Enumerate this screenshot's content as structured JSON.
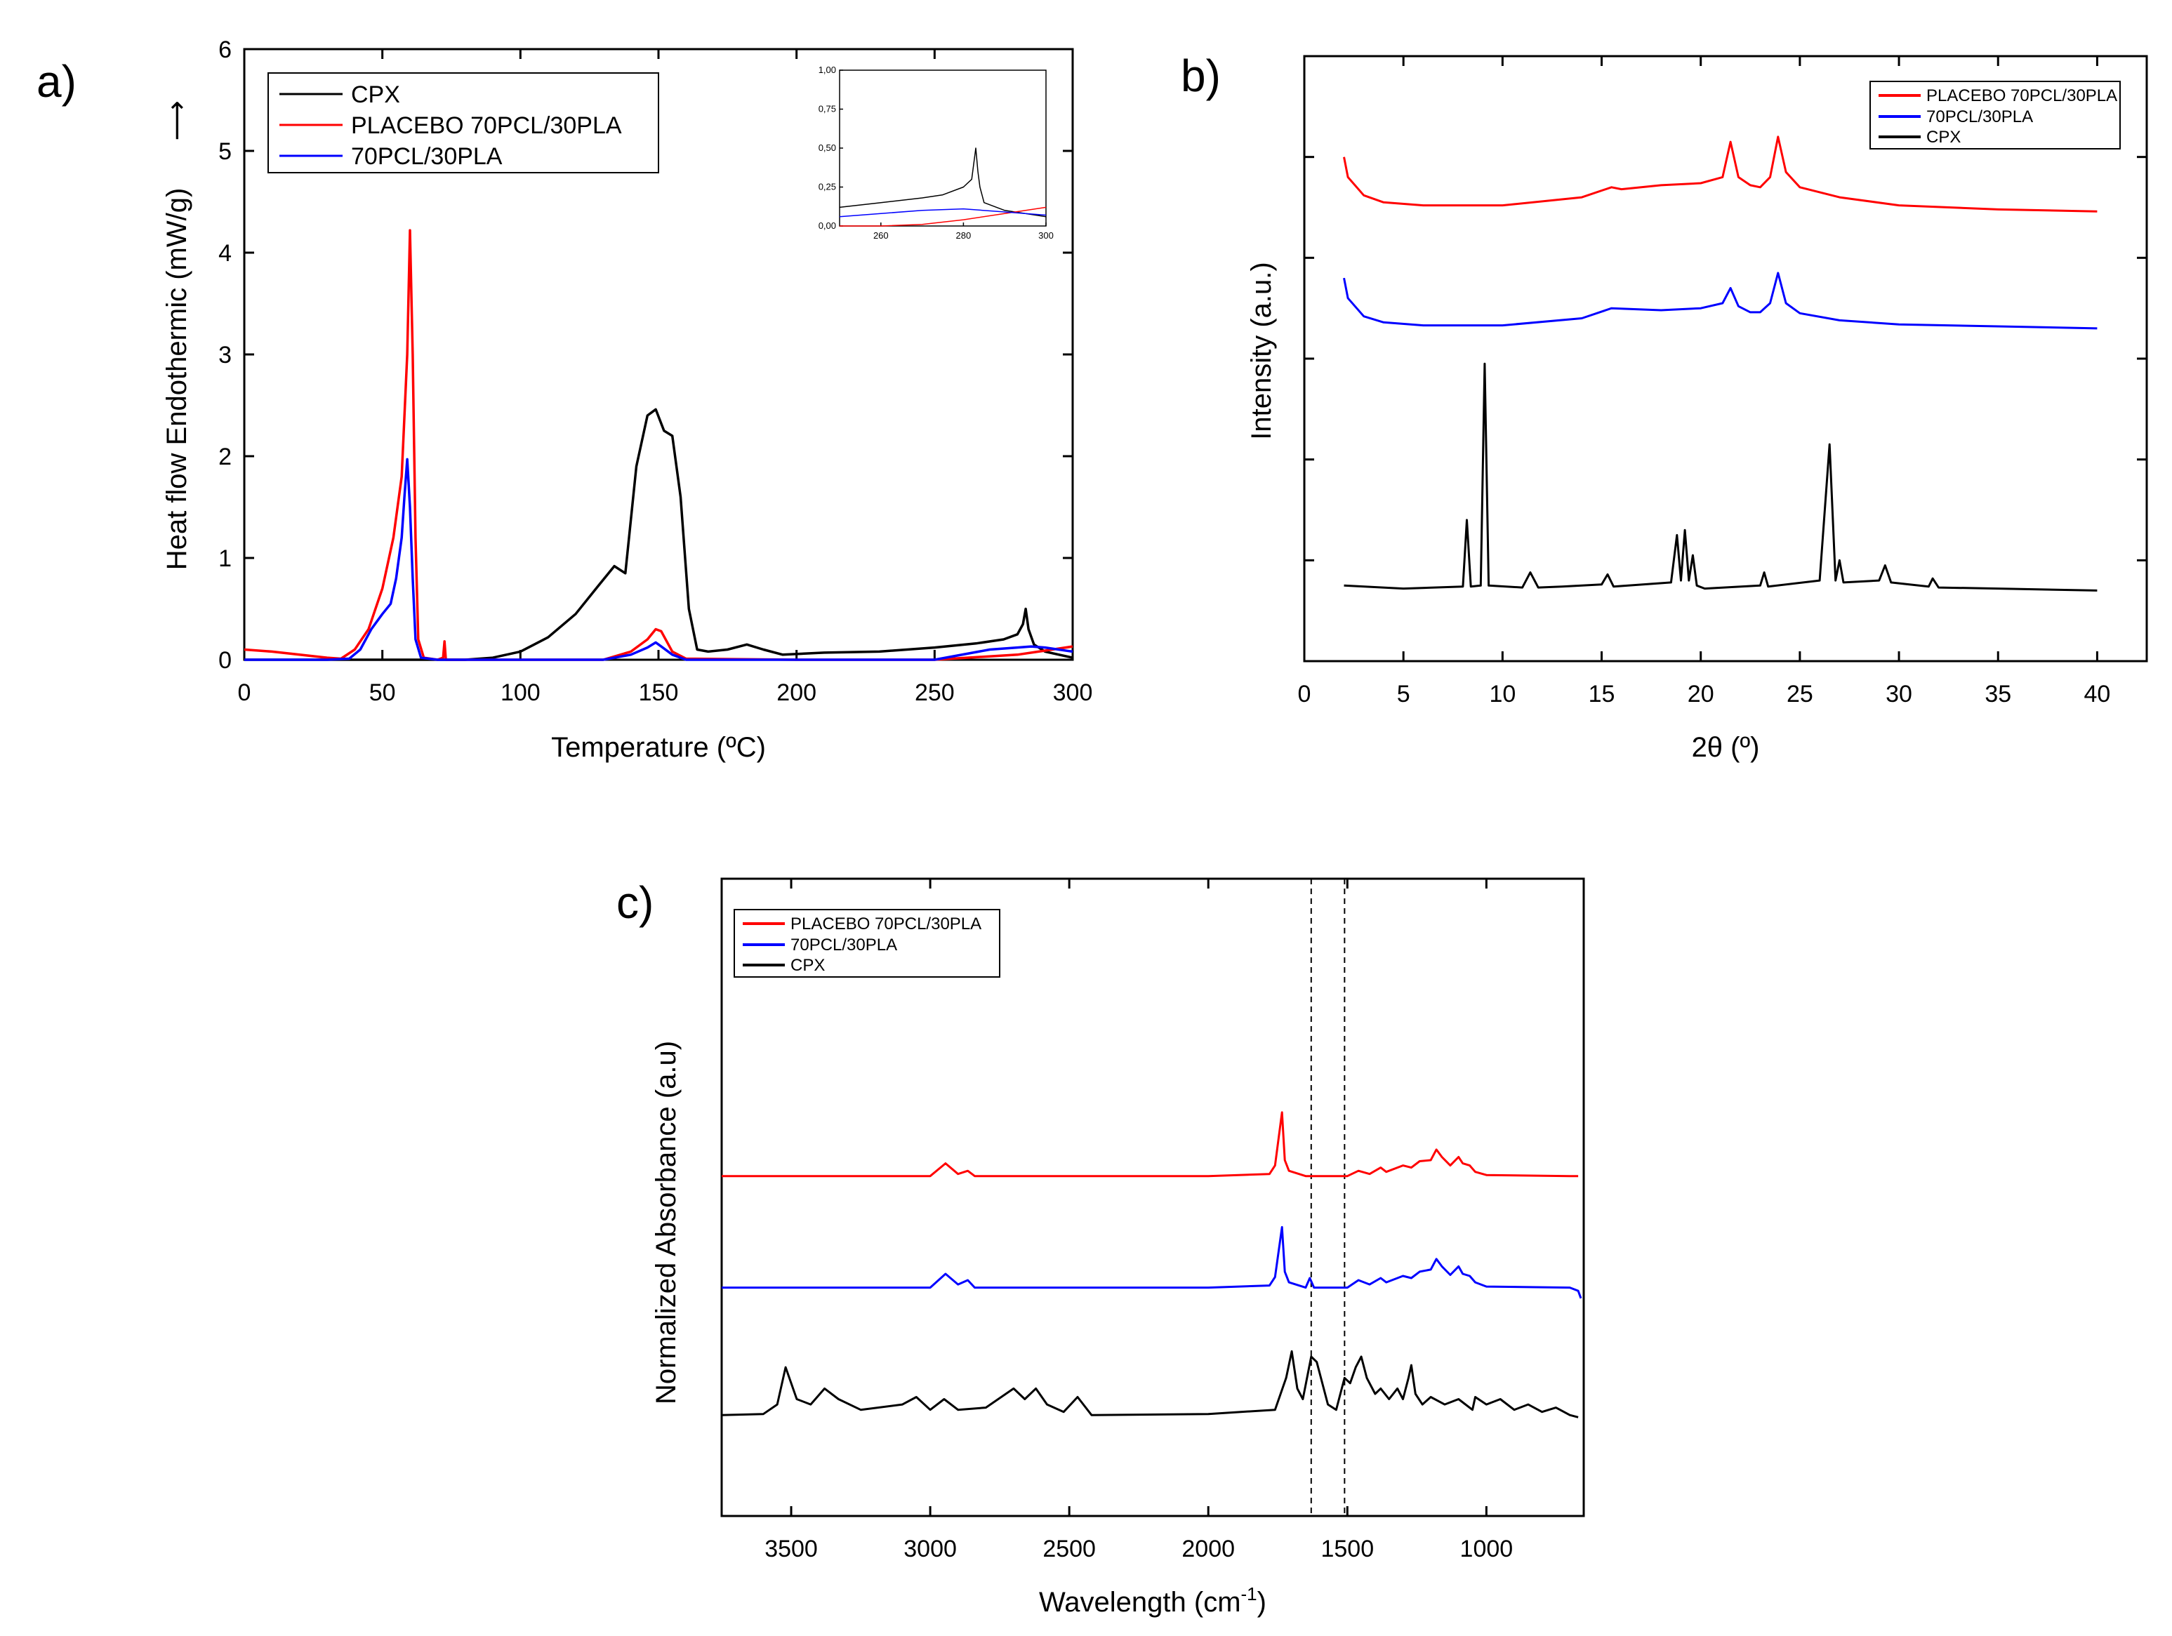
{
  "chart_data": [
    {
      "panel": "a)",
      "type": "line",
      "xlabel": "Temperature (ºC)",
      "ylabel": "Heat flow Endothermic (mW/g)",
      "ylabel_arrow": "⟶",
      "xlim": [
        0,
        300
      ],
      "ylim": [
        0,
        6
      ],
      "xticks": [
        0,
        50,
        100,
        150,
        200,
        250,
        300
      ],
      "yticks": [
        0,
        1,
        2,
        3,
        4,
        5,
        6
      ],
      "legend": [
        "CPX",
        "PLACEBO 70PCL/30PLA",
        "70PCL/30PLA"
      ],
      "series": [
        {
          "name": "CPX",
          "color": "#000000",
          "x": [
            0,
            20,
            40,
            60,
            80,
            90,
            100,
            110,
            120,
            128,
            134,
            138,
            142,
            146,
            149,
            152,
            155,
            158,
            161,
            164,
            168,
            175,
            182,
            188,
            195,
            210,
            230,
            250,
            265,
            275,
            280,
            282,
            283,
            284,
            286,
            290,
            300
          ],
          "y": [
            0,
            0,
            0,
            0,
            0,
            0.02,
            0.08,
            0.22,
            0.45,
            0.72,
            0.92,
            0.85,
            1.9,
            2.4,
            2.46,
            2.25,
            2.2,
            1.6,
            0.5,
            0.1,
            0.08,
            0.1,
            0.15,
            0.1,
            0.05,
            0.07,
            0.08,
            0.12,
            0.16,
            0.2,
            0.25,
            0.35,
            0.5,
            0.3,
            0.15,
            0.08,
            0.02
          ]
        },
        {
          "name": "PLACEBO 70PCL/30PLA",
          "color": "#ff0000",
          "x": [
            0,
            10,
            20,
            30,
            35,
            40,
            45,
            50,
            54,
            57,
            59,
            60,
            61,
            62,
            63,
            65,
            70,
            72,
            72.5,
            73,
            80,
            130,
            140,
            146,
            149,
            151,
            155,
            160,
            200,
            250,
            280,
            290,
            300
          ],
          "y": [
            0.1,
            0.08,
            0.05,
            0.02,
            0.01,
            0.1,
            0.3,
            0.7,
            1.2,
            1.8,
            3.0,
            4.22,
            3.0,
            1.2,
            0.2,
            0.02,
            0,
            0.02,
            0.18,
            0,
            0,
            0,
            0.08,
            0.2,
            0.3,
            0.28,
            0.08,
            0.01,
            0,
            0,
            0.05,
            0.09,
            0.13
          ]
        },
        {
          "name": "70PCL/30PLA",
          "color": "#0000ff",
          "x": [
            0,
            30,
            38,
            42,
            46,
            50,
            53,
            55,
            57,
            58,
            59,
            60,
            61,
            62,
            64,
            70,
            130,
            140,
            146,
            149,
            151,
            155,
            160,
            200,
            250,
            270,
            280,
            285,
            290,
            300
          ],
          "y": [
            0,
            0,
            0.01,
            0.1,
            0.3,
            0.45,
            0.55,
            0.8,
            1.2,
            1.6,
            1.97,
            1.5,
            0.8,
            0.2,
            0.02,
            0,
            0,
            0.05,
            0.12,
            0.17,
            0.13,
            0.05,
            0,
            0,
            0,
            0.1,
            0.12,
            0.13,
            0.12,
            0.08
          ]
        }
      ],
      "inset": {
        "xlim": [
          250,
          300
        ],
        "ylim": [
          0,
          1
        ],
        "xticks": [
          "260",
          "280",
          "300"
        ],
        "yticks": [
          "0,00",
          "0,25",
          "0,50",
          "0,75",
          "1,00"
        ],
        "series": [
          {
            "name": "CPX",
            "color": "#000000",
            "x": [
              250,
              260,
              270,
              275,
              280,
              282,
              283,
              283.5,
              284,
              285,
              290,
              295,
              300
            ],
            "y": [
              0.12,
              0.15,
              0.18,
              0.2,
              0.25,
              0.3,
              0.5,
              0.35,
              0.25,
              0.15,
              0.1,
              0.08,
              0.06
            ]
          },
          {
            "name": "PLACEBO 70PCL/30PLA",
            "color": "#ff0000",
            "x": [
              250,
              260,
              270,
              280,
              290,
              300
            ],
            "y": [
              0,
              0,
              0.01,
              0.04,
              0.08,
              0.12
            ]
          },
          {
            "name": "70PCL/30PLA",
            "color": "#0000ff",
            "x": [
              250,
              260,
              270,
              280,
              290,
              300
            ],
            "y": [
              0.06,
              0.08,
              0.1,
              0.11,
              0.09,
              0.07
            ]
          }
        ]
      }
    },
    {
      "panel": "b)",
      "type": "line",
      "xlabel": "2θ (º)",
      "ylabel": "Intensity (a.u.)",
      "xlim": [
        0,
        42.5
      ],
      "xticks": [
        0,
        5,
        10,
        15,
        20,
        25,
        30,
        35,
        40
      ],
      "ylim": [
        0,
        6
      ],
      "legend": [
        "PLACEBO 70PCL/30PLA",
        "70PCL/30PLA",
        "CPX"
      ],
      "series": [
        {
          "name": "PLACEBO 70PCL/30PLA",
          "color": "#ff0000",
          "x": [
            2,
            2.2,
            3,
            4,
            6,
            10,
            14,
            15.5,
            16,
            18,
            20,
            21.1,
            21.5,
            21.9,
            22.5,
            23,
            23.5,
            23.9,
            24.3,
            25,
            27,
            30,
            35,
            40
          ],
          "y": [
            5.0,
            4.8,
            4.62,
            4.55,
            4.52,
            4.52,
            4.6,
            4.7,
            4.68,
            4.72,
            4.74,
            4.8,
            5.15,
            4.8,
            4.72,
            4.7,
            4.8,
            5.2,
            4.85,
            4.7,
            4.6,
            4.52,
            4.48,
            4.46
          ]
        },
        {
          "name": "70PCL/30PLA",
          "color": "#0000ff",
          "x": [
            2,
            2.2,
            3,
            4,
            6,
            10,
            14,
            15.5,
            18,
            20,
            21.1,
            21.5,
            21.9,
            22.5,
            23,
            23.5,
            23.9,
            24.3,
            25,
            27,
            30,
            35,
            40
          ],
          "y": [
            3.8,
            3.6,
            3.42,
            3.36,
            3.33,
            3.33,
            3.4,
            3.5,
            3.48,
            3.5,
            3.55,
            3.7,
            3.52,
            3.46,
            3.46,
            3.55,
            3.85,
            3.55,
            3.45,
            3.38,
            3.34,
            3.32,
            3.3
          ]
        },
        {
          "name": "CPX",
          "color": "#000000",
          "x": [
            2,
            5,
            8,
            8.2,
            8.4,
            8.9,
            9.1,
            9.3,
            11,
            11.4,
            11.8,
            13,
            15,
            15.3,
            15.6,
            18.5,
            18.8,
            19.0,
            19.2,
            19.4,
            19.6,
            19.8,
            20.2,
            23,
            23.2,
            23.4,
            26,
            26.5,
            26.8,
            27.0,
            27.2,
            29,
            29.3,
            29.6,
            31.5,
            31.7,
            32,
            35,
            40
          ],
          "y": [
            0.75,
            0.72,
            0.74,
            1.4,
            0.74,
            0.75,
            2.95,
            0.75,
            0.73,
            0.88,
            0.73,
            0.74,
            0.76,
            0.86,
            0.74,
            0.78,
            1.25,
            0.8,
            1.3,
            0.8,
            1.05,
            0.75,
            0.72,
            0.75,
            0.88,
            0.74,
            0.8,
            2.15,
            0.8,
            1.0,
            0.78,
            0.8,
            0.95,
            0.78,
            0.74,
            0.82,
            0.73,
            0.72,
            0.7
          ]
        }
      ]
    },
    {
      "panel": "c)",
      "type": "line",
      "xlabel": "Wavelength (cm",
      "xlabel_sup": "-1",
      "xlabel_end": ")",
      "ylabel": "Normalized Absorbance (a.u)",
      "xlim": [
        3750,
        650
      ],
      "xticks": [
        3500,
        3000,
        2500,
        2000,
        1500,
        1000
      ],
      "ylim": [
        0,
        6
      ],
      "dashed_lines": [
        1630,
        1510
      ],
      "legend": [
        "PLACEBO 70PCL/30PLA",
        "70PCL/30PLA",
        "CPX"
      ],
      "series": [
        {
          "name": "PLACEBO 70PCL/30PLA",
          "color": "#ff0000",
          "x": [
            3750,
            3000,
            2945,
            2900,
            2865,
            2840,
            2000,
            1780,
            1760,
            1735,
            1725,
            1710,
            1650,
            1500,
            1460,
            1420,
            1380,
            1360,
            1300,
            1270,
            1240,
            1200,
            1180,
            1160,
            1130,
            1100,
            1085,
            1060,
            1040,
            1000,
            700,
            670
          ],
          "y": [
            3.2,
            3.2,
            3.32,
            3.22,
            3.25,
            3.2,
            3.2,
            3.22,
            3.3,
            3.8,
            3.35,
            3.25,
            3.2,
            3.2,
            3.25,
            3.22,
            3.28,
            3.24,
            3.3,
            3.28,
            3.34,
            3.35,
            3.45,
            3.38,
            3.3,
            3.38,
            3.32,
            3.3,
            3.24,
            3.21,
            3.2,
            3.2
          ]
        },
        {
          "name": "70PCL/30PLA",
          "color": "#0000ff",
          "x": [
            3750,
            3000,
            2945,
            2900,
            2865,
            2840,
            2000,
            1780,
            1760,
            1735,
            1725,
            1710,
            1650,
            1635,
            1620,
            1500,
            1460,
            1420,
            1380,
            1360,
            1300,
            1270,
            1240,
            1200,
            1180,
            1160,
            1130,
            1100,
            1085,
            1060,
            1040,
            1000,
            700,
            670,
            660
          ],
          "y": [
            2.15,
            2.15,
            2.28,
            2.18,
            2.22,
            2.15,
            2.15,
            2.17,
            2.25,
            2.72,
            2.3,
            2.2,
            2.15,
            2.24,
            2.15,
            2.15,
            2.22,
            2.18,
            2.24,
            2.2,
            2.26,
            2.24,
            2.3,
            2.32,
            2.42,
            2.35,
            2.27,
            2.35,
            2.28,
            2.26,
            2.2,
            2.16,
            2.15,
            2.12,
            2.05
          ]
        },
        {
          "name": "CPX",
          "color": "#000000",
          "x": [
            3750,
            3600,
            3550,
            3520,
            3480,
            3430,
            3380,
            3330,
            3250,
            3100,
            3050,
            3000,
            2950,
            2900,
            2800,
            2700,
            2660,
            2620,
            2580,
            2520,
            2470,
            2420,
            2000,
            1760,
            1720,
            1700,
            1680,
            1660,
            1630,
            1610,
            1570,
            1540,
            1510,
            1490,
            1470,
            1450,
            1430,
            1400,
            1380,
            1350,
            1320,
            1300,
            1280,
            1270,
            1255,
            1230,
            1200,
            1150,
            1100,
            1050,
            1040,
            1000,
            950,
            900,
            850,
            800,
            750,
            700,
            670
          ],
          "y": [
            0.95,
            0.96,
            1.05,
            1.4,
            1.1,
            1.05,
            1.2,
            1.1,
            1.0,
            1.05,
            1.12,
            1.0,
            1.1,
            1.0,
            1.02,
            1.2,
            1.1,
            1.2,
            1.05,
            0.98,
            1.12,
            0.95,
            0.96,
            1.0,
            1.3,
            1.55,
            1.2,
            1.1,
            1.5,
            1.45,
            1.05,
            1.0,
            1.3,
            1.25,
            1.4,
            1.5,
            1.3,
            1.15,
            1.2,
            1.1,
            1.2,
            1.1,
            1.3,
            1.42,
            1.15,
            1.05,
            1.12,
            1.05,
            1.1,
            1.0,
            1.12,
            1.05,
            1.1,
            1.0,
            1.05,
            0.98,
            1.02,
            0.95,
            0.93
          ]
        }
      ]
    }
  ]
}
